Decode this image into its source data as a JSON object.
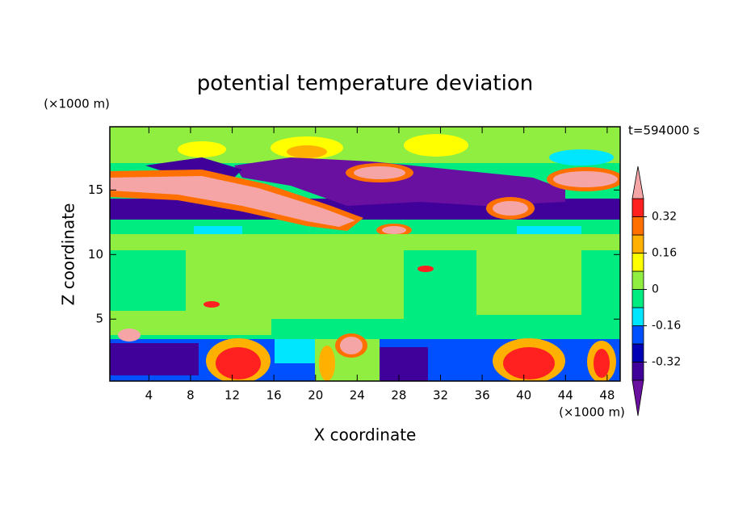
{
  "chart_data": {
    "type": "contour",
    "title": "potential temperature deviation",
    "xlabel": "X coordinate",
    "ylabel": "Z coordinate",
    "x_unit": "(×1000 m)",
    "y_unit": "(×1000 m)",
    "annotation": "t=594000 s",
    "xlim": [
      0.25,
      49.25
    ],
    "ylim": [
      0.2,
      19.9
    ],
    "xticks": [
      4,
      8,
      12,
      16,
      20,
      24,
      28,
      32,
      36,
      40,
      44,
      48
    ],
    "yticks": [
      5,
      10,
      15
    ],
    "levels": [
      -0.4,
      -0.32,
      -0.24,
      -0.16,
      -0.08,
      0,
      0.08,
      0.16,
      0.24,
      0.32,
      0.4
    ],
    "colors": [
      "#6a10a0",
      "#40009a",
      "#0000b4",
      "#0050ff",
      "#00e6ff",
      "#00ec80",
      "#90ee40",
      "#ffff00",
      "#ffb000",
      "#ff7000",
      "#ff2020",
      "#f5a5a5"
    ],
    "colorbar_ticks": [
      -0.32,
      -0.16,
      0,
      0.16,
      0.32
    ]
  }
}
